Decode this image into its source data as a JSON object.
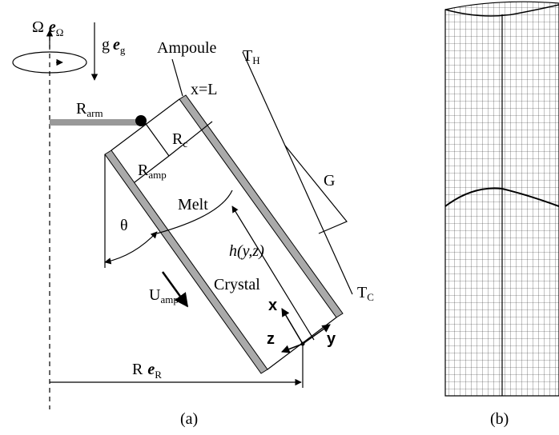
{
  "labels": {
    "omega": {
      "text": "Ω",
      "bold": "e",
      "sub": "Ω"
    },
    "gravity": {
      "text": "g",
      "bold": "e",
      "sub": "g"
    },
    "ampoule": {
      "text": "Ampoule"
    },
    "t_hot": {
      "text": "T",
      "sub": "H"
    },
    "x_end": {
      "text": "x=L"
    },
    "r_arm": {
      "text": "R",
      "sub": "arm"
    },
    "r_c": {
      "text": "R",
      "sub": "c"
    },
    "r_amp": {
      "text": "R",
      "sub": "amp"
    },
    "gradient": {
      "text": "G"
    },
    "melt": {
      "text": "Melt"
    },
    "theta": {
      "text": "θ"
    },
    "interface": {
      "text": "h(y,z)"
    },
    "u_amp": {
      "text": "U",
      "sub": "amp"
    },
    "crystal": {
      "text": "Crystal"
    },
    "t_cold": {
      "text": "T",
      "sub": "C"
    },
    "axis_x": {
      "text": "x"
    },
    "axis_z": {
      "text": "z"
    },
    "axis_y": {
      "text": "y"
    },
    "radius": {
      "text": "R",
      "bold": "e",
      "sub": "R"
    },
    "panel_a": {
      "text": "(a)"
    },
    "panel_b": {
      "text": "(b)"
    }
  }
}
